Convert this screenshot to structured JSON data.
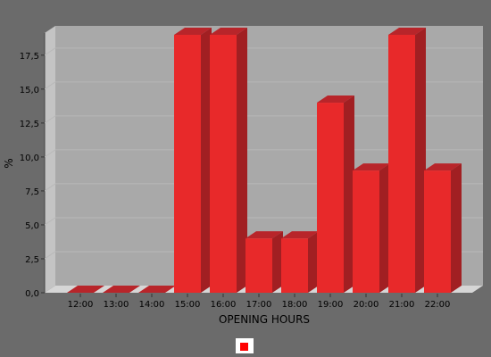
{
  "chart_data": {
    "type": "bar",
    "categories": [
      "12:00",
      "13:00",
      "14:00",
      "15:00",
      "16:00",
      "17:00",
      "18:00",
      "19:00",
      "20:00",
      "21:00",
      "22:00"
    ],
    "values": [
      0,
      0,
      0,
      19,
      19,
      4,
      4,
      14,
      9,
      19,
      9
    ],
    "xlabel": "OPENING HOURS",
    "ylabel": "%",
    "ylim": [
      0,
      19
    ],
    "yticks": [
      "0,0",
      "2,5",
      "5,0",
      "7,5",
      "10,0",
      "12,5",
      "15,0",
      "17,5"
    ],
    "grid": true,
    "legend_position": "bottom-center",
    "colors": {
      "bar": "#e8292a",
      "bar_top": "#b8252a",
      "bar_side": "#a11f22",
      "background": "#6b6b6b",
      "plot_back": "#a9a9a9",
      "plot_wall": "#c4c4c4",
      "plot_floor": "#d6d6d6"
    }
  }
}
